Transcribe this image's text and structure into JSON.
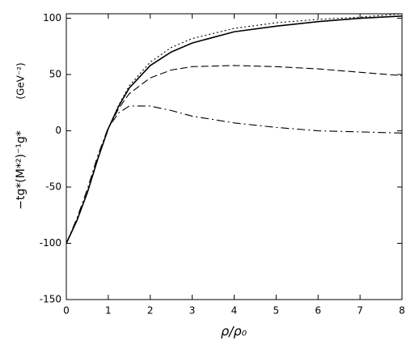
{
  "chart_data": {
    "type": "line",
    "x_label": "ρ/ρ₀",
    "y_label": "−tg*(M*²)⁻¹g*",
    "y_unit": "(GeV⁻²)",
    "x": [
      0,
      0.25,
      0.5,
      0.75,
      1,
      1.25,
      1.5,
      2,
      2.5,
      3,
      4,
      5,
      6,
      7,
      8
    ],
    "series": [
      {
        "color": "#000000",
        "dash": "solid",
        "values": [
          -100,
          -80,
          -55,
          -25,
          2,
          22,
          38,
          58,
          70,
          78,
          88,
          93,
          97,
          100,
          102
        ]
      },
      {
        "color": "#000000",
        "dash": "dotted",
        "values": [
          -100,
          -80,
          -55,
          -25,
          2,
          23,
          40,
          61,
          74,
          82,
          91,
          96,
          99,
          101,
          104
        ]
      },
      {
        "color": "#000000",
        "dash": "dashed",
        "values": [
          -100,
          -80,
          -55,
          -25,
          2,
          20,
          33,
          47,
          54,
          57,
          58,
          57,
          55,
          52,
          49
        ]
      },
      {
        "color": "#000000",
        "dash": "dashdot",
        "values": [
          -100,
          -78,
          -52,
          -22,
          3,
          16,
          22,
          22,
          18,
          13,
          7,
          3,
          0,
          -1,
          -2
        ]
      }
    ],
    "xlim": [
      0,
      8
    ],
    "xticks": [
      0,
      1,
      2,
      3,
      4,
      5,
      6,
      7,
      8
    ],
    "ylim": [
      -150,
      104
    ],
    "yticks": [
      -150,
      -100,
      -50,
      0,
      50,
      100
    ],
    "grid": false
  }
}
